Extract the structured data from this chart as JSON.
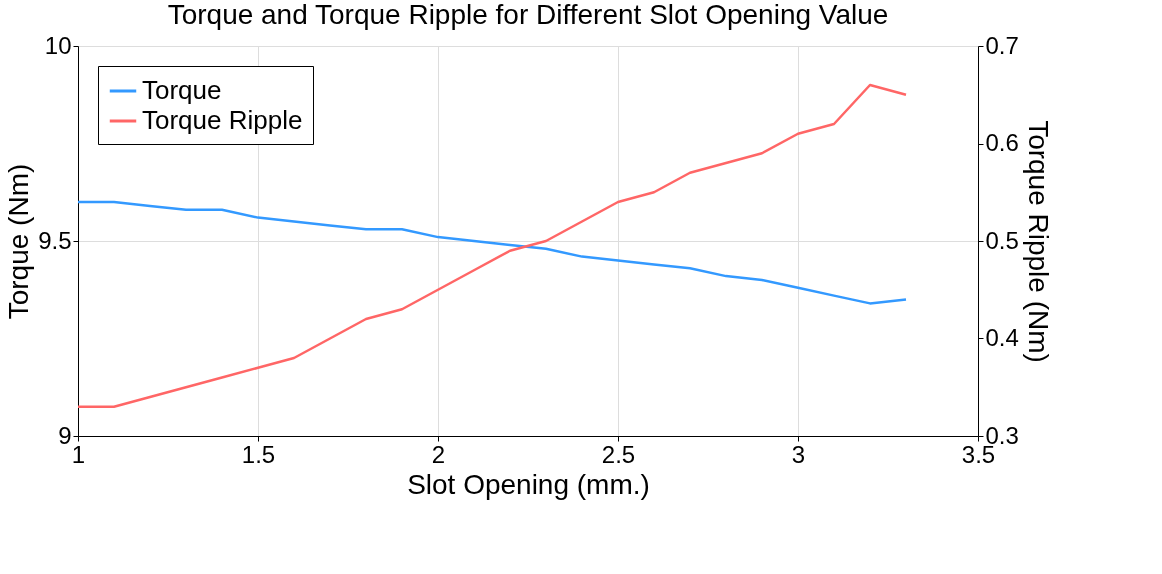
{
  "chart_data": {
    "type": "line",
    "title": "Torque and Torque Ripple for Different Slot Opening Value",
    "xlabel": "Slot Opening (mm.)",
    "ylabel": "Torque (Nm)",
    "y2label": "Torque Ripple (Nm)",
    "x": [
      1.0,
      1.1,
      1.2,
      1.3,
      1.4,
      1.5,
      1.6,
      1.7,
      1.8,
      1.9,
      2.0,
      2.1,
      2.2,
      2.3,
      2.4,
      2.5,
      2.6,
      2.7,
      2.8,
      2.9,
      3.0,
      3.1,
      3.2,
      3.3
    ],
    "series": [
      {
        "name": "Torque",
        "color": "#3399ff",
        "values": [
          9.6,
          9.6,
          9.59,
          9.58,
          9.58,
          9.56,
          9.55,
          9.54,
          9.53,
          9.53,
          9.51,
          9.5,
          9.49,
          9.48,
          9.46,
          9.45,
          9.44,
          9.43,
          9.41,
          9.4,
          9.38,
          9.36,
          9.34,
          9.35
        ]
      },
      {
        "name": "Torque Ripple",
        "color": "#ff6666",
        "axis": "y2",
        "values": [
          0.33,
          0.33,
          0.34,
          0.35,
          0.36,
          0.37,
          0.38,
          0.4,
          0.42,
          0.43,
          0.45,
          0.47,
          0.49,
          0.5,
          0.52,
          0.54,
          0.55,
          0.57,
          0.58,
          0.59,
          0.61,
          0.62,
          0.66,
          0.65
        ]
      }
    ],
    "xlim": [
      1,
      3.5
    ],
    "xticks": [
      1,
      1.5,
      2,
      2.5,
      3,
      3.5
    ],
    "ylim": [
      9,
      10
    ],
    "yticks": [
      9,
      9.5,
      10
    ],
    "y2lim": [
      0.3,
      0.7
    ],
    "y2ticks": [
      0.3,
      0.4,
      0.5,
      0.6,
      0.7
    ],
    "grid": true,
    "legend": "top left"
  }
}
